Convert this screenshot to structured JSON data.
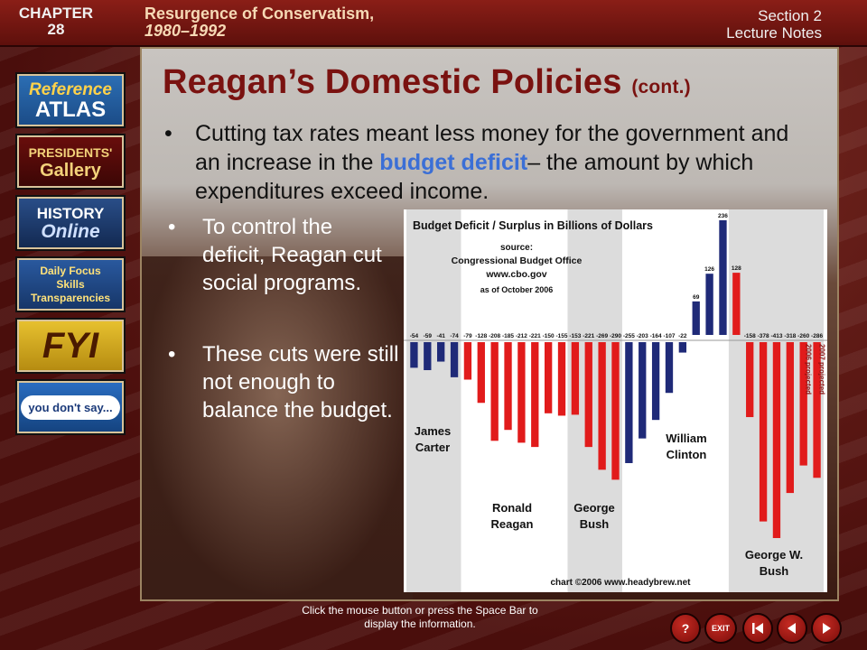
{
  "header": {
    "chapter_label": "CHAPTER",
    "chapter_number": "28",
    "topic_title": "Resurgence of Conservatism,",
    "topic_years": "1980–1992",
    "section_label": "Section 2",
    "lecture_label": "Lecture Notes"
  },
  "sidebar": {
    "items": [
      {
        "label_top": "Reference",
        "label_bottom": "ATLAS"
      },
      {
        "label_top": "PRESIDENTS'",
        "label_bottom": "Gallery"
      },
      {
        "label_top": "HISTORY",
        "label_bottom": "Online"
      },
      {
        "label_top": "Daily Focus",
        "label_mid": "Skills",
        "label_bottom": "Transparencies"
      },
      {
        "label_top": "FYI"
      },
      {
        "label_top": "you don't say..."
      }
    ]
  },
  "slide": {
    "title": "Reagan’s Domestic Policies",
    "title_suffix": "(cont.)",
    "bullet_main_part1": "Cutting tax rates meant less money for the government and an increase in the ",
    "bullet_main_highlight": "budget deficit",
    "bullet_main_part2": "– the amount by which expenditures exceed income.",
    "sub_bullet_1": "To control the deficit, Reagan cut social programs.",
    "sub_bullet_2": "These cuts were still not enough to balance the budget.",
    "bullet_symbol": "•"
  },
  "chart_data": {
    "type": "bar",
    "title": "Budget Deficit / Surplus   in Billions of Dollars",
    "source_lines": [
      "source:",
      "Congressional Budget Office",
      "www.cbo.gov",
      "as of October 2006"
    ],
    "credit": "chart ©2006 www.headybrew.net",
    "ylim": [
      -413,
      236
    ],
    "values": [
      -54,
      -59,
      -41,
      -74,
      -79,
      -128,
      -208,
      -185,
      -212,
      -221,
      -150,
      -155,
      -153,
      -221,
      -269,
      -290,
      -255,
      -203,
      -164,
      -107,
      -22,
      69,
      126,
      236,
      128,
      -158,
      -378,
      -413,
      -318,
      -260,
      -286
    ],
    "value_labels": [
      "-54",
      "-59",
      "-41",
      "-74",
      "-79",
      "-128",
      "-208",
      "-185",
      "-212",
      "-221",
      "-150",
      "-155",
      "-153",
      "-221",
      "-269",
      "-290",
      "-255",
      "-203",
      "-164",
      "-107",
      "-22",
      "69",
      "126",
      "236",
      "128",
      "-158",
      "-378",
      "-413",
      "-318",
      "-260",
      "-286"
    ],
    "presidents": [
      {
        "name_line1": "James",
        "name_line2": "Carter",
        "start": 0,
        "end": 3,
        "shaded": true,
        "color": "#1f2a78"
      },
      {
        "name_line1": "Ronald",
        "name_line2": "Reagan",
        "start": 4,
        "end": 11,
        "shaded": false,
        "color": "#e11b1b"
      },
      {
        "name_line1": "George",
        "name_line2": "Bush",
        "start": 12,
        "end": 15,
        "shaded": true,
        "color": "#e11b1b"
      },
      {
        "name_line1": "William",
        "name_line2": "Clinton",
        "start": 16,
        "end": 23,
        "shaded": false,
        "color": "#1f2a78"
      },
      {
        "name_line1": "George W.",
        "name_line2": "Bush",
        "start": 24,
        "end": 30,
        "shaded": true,
        "color": "#e11b1b"
      }
    ],
    "projected_labels": [
      "2006 projected",
      "2007 projected"
    ]
  },
  "footer": {
    "instruction": "Click the mouse button or press the Space Bar to display the information.",
    "nav": [
      "?",
      "EXIT"
    ]
  },
  "colors": {
    "title_red": "#7a1210",
    "highlight_blue": "#3b6fd6",
    "bar_red": "#e11b1b",
    "bar_blue": "#1f2a78"
  }
}
